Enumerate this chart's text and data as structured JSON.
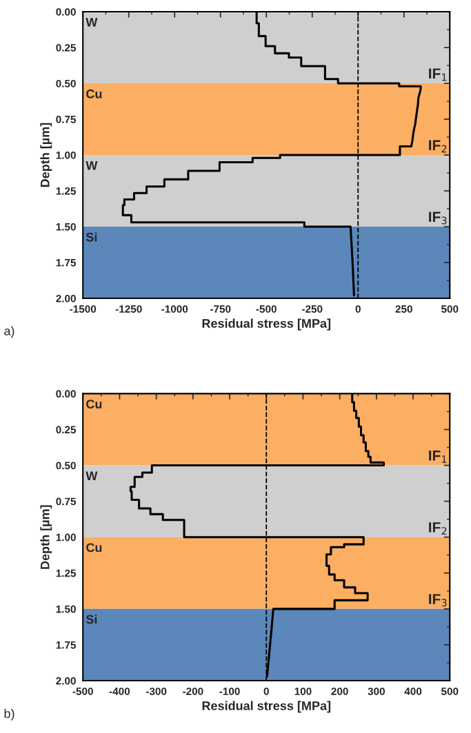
{
  "chart_data": [
    {
      "type": "line",
      "xlabel": "Residual stress [MPa]",
      "ylabel": "Depth [µm]",
      "xlim": [
        -1500,
        500
      ],
      "xticks": [
        -1500,
        -1250,
        -1000,
        -750,
        -500,
        -250,
        0,
        250,
        500
      ],
      "ylim": [
        2.0,
        0.0
      ],
      "yticks": [
        {
          "value": 0,
          "label": "0.00"
        },
        {
          "value": 0.25,
          "label": "0.25"
        },
        {
          "value": 0.5,
          "label": "0.50"
        },
        {
          "value": 0.75,
          "label": "0.75"
        },
        {
          "value": 1.0,
          "label": "1.00"
        },
        {
          "value": 1.25,
          "label": "1.25"
        },
        {
          "value": 1.5,
          "label": "1.50"
        },
        {
          "value": 1.75,
          "label": "1.75"
        },
        {
          "value": 2.0,
          "label": "2.00"
        }
      ],
      "grid": false,
      "marker": "none",
      "line_style": "solid",
      "series": [
        {
          "color": "#000000",
          "x": [
            -553,
            -553,
            -541,
            -541,
            -504,
            -504,
            -453,
            -453,
            -377,
            -377,
            -310,
            -310,
            -180,
            -180,
            -109,
            -109,
            224,
            224,
            342,
            340,
            329,
            326,
            318,
            312,
            302,
            296,
            290,
            290,
            228,
            228,
            -425,
            -425,
            -575,
            -575,
            -755,
            -755,
            -926,
            -926,
            -1056,
            -1056,
            -1153,
            -1153,
            -1221,
            -1221,
            -1274,
            -1274,
            -1282,
            -1282,
            -1236,
            -1236,
            -293,
            -293,
            -41,
            -30,
            -22
          ],
          "values": [
            0.0,
            0.08,
            0.08,
            0.17,
            0.17,
            0.24,
            0.24,
            0.29,
            0.29,
            0.32,
            0.32,
            0.38,
            0.38,
            0.47,
            0.47,
            0.5,
            0.5,
            0.52,
            0.52,
            0.55,
            0.6,
            0.65,
            0.72,
            0.78,
            0.84,
            0.9,
            0.94,
            0.94,
            0.94,
            1.0,
            1.0,
            1.02,
            1.02,
            1.05,
            1.05,
            1.11,
            1.11,
            1.17,
            1.17,
            1.22,
            1.22,
            1.265,
            1.265,
            1.31,
            1.31,
            1.35,
            1.35,
            1.42,
            1.42,
            1.47,
            1.47,
            1.5,
            1.5,
            1.75,
            1.98
          ]
        }
      ],
      "ref_lines": [
        {
          "axis": "x",
          "value": 0,
          "color": "#000000",
          "line_style": "dashed"
        }
      ],
      "bands": [
        {
          "axis": "y",
          "from": 0.0,
          "to": 0.5,
          "label": "W",
          "color": "#cfcfcf"
        },
        {
          "axis": "y",
          "from": 0.5,
          "to": 1.0,
          "label": "Cu",
          "color": "#fcae63"
        },
        {
          "axis": "y",
          "from": 1.0,
          "to": 1.5,
          "label": "W",
          "color": "#cfcfcf"
        },
        {
          "axis": "y",
          "from": 1.5,
          "to": 2.0,
          "label": "Si",
          "color": "#5b87ba"
        }
      ],
      "annotations": [
        {
          "text": "IF$_{1}$",
          "y": 0.5
        },
        {
          "text": "IF$_{2}$",
          "y": 1.0
        },
        {
          "text": "IF$_{3}$",
          "y": 1.5
        },
        "a)"
      ]
    },
    {
      "type": "line",
      "xlabel": "Residual stress [MPa]",
      "ylabel": "Depth [µm]",
      "xlim": [
        -500,
        500
      ],
      "xticks": [
        -500,
        -400,
        -300,
        -200,
        -100,
        0,
        100,
        200,
        300,
        400,
        500
      ],
      "ylim": [
        2.0,
        0.0
      ],
      "yticks": [
        {
          "value": 0,
          "label": "0.00"
        },
        {
          "value": 0.25,
          "label": "0.25"
        },
        {
          "value": 0.5,
          "label": "0.50"
        },
        {
          "value": 0.75,
          "label": "0.75"
        },
        {
          "value": 1.0,
          "label": "1.00"
        },
        {
          "value": 1.25,
          "label": "1.25"
        },
        {
          "value": 1.5,
          "label": "1.50"
        },
        {
          "value": 1.75,
          "label": "1.75"
        },
        {
          "value": 2.0,
          "label": "2.00"
        }
      ],
      "grid": false,
      "marker": "none",
      "line_style": "solid",
      "series": [
        {
          "color": "#000000",
          "x": [
            234,
            234,
            239,
            239,
            245,
            245,
            252,
            252,
            258,
            258,
            265,
            265,
            271,
            271,
            278,
            278,
            284,
            284,
            320,
            320,
            -312,
            -312,
            -338,
            -338,
            -359,
            -359,
            -370,
            -370,
            -367,
            -367,
            -347,
            -347,
            -316,
            -316,
            -282,
            -282,
            -224,
            -224,
            265,
            265,
            212,
            212,
            176,
            176,
            164,
            164,
            171,
            171,
            186,
            186,
            212,
            212,
            242,
            242,
            276,
            276,
            186,
            186,
            19,
            12,
            2
          ],
          "values": [
            0.0,
            0.06,
            0.06,
            0.12,
            0.12,
            0.17,
            0.17,
            0.23,
            0.23,
            0.29,
            0.29,
            0.34,
            0.34,
            0.4,
            0.4,
            0.44,
            0.44,
            0.48,
            0.48,
            0.5,
            0.5,
            0.55,
            0.55,
            0.58,
            0.58,
            0.65,
            0.65,
            0.68,
            0.68,
            0.74,
            0.74,
            0.8,
            0.8,
            0.84,
            0.84,
            0.88,
            0.88,
            1.0,
            1.0,
            1.05,
            1.05,
            1.07,
            1.07,
            1.12,
            1.12,
            1.2,
            1.2,
            1.26,
            1.26,
            1.3,
            1.3,
            1.35,
            1.35,
            1.39,
            1.39,
            1.44,
            1.44,
            1.5,
            1.5,
            1.7,
            1.97
          ]
        }
      ],
      "ref_lines": [
        {
          "axis": "x",
          "value": 0,
          "color": "#000000",
          "line_style": "dashed"
        }
      ],
      "bands": [
        {
          "axis": "y",
          "from": 0.0,
          "to": 0.5,
          "label": "Cu",
          "color": "#fcae63"
        },
        {
          "axis": "y",
          "from": 0.5,
          "to": 1.0,
          "label": "W",
          "color": "#cfcfcf"
        },
        {
          "axis": "y",
          "from": 1.0,
          "to": 1.5,
          "label": "Cu",
          "color": "#fcae63"
        },
        {
          "axis": "y",
          "from": 1.5,
          "to": 2.0,
          "label": "Si",
          "color": "#5b87ba"
        }
      ],
      "annotations": [
        {
          "text": "IF$_{1}$",
          "y": 0.5
        },
        {
          "text": "IF$_{2}$",
          "y": 1.0
        },
        {
          "text": "IF$_{3}$",
          "y": 1.5
        },
        "b)"
      ]
    }
  ]
}
